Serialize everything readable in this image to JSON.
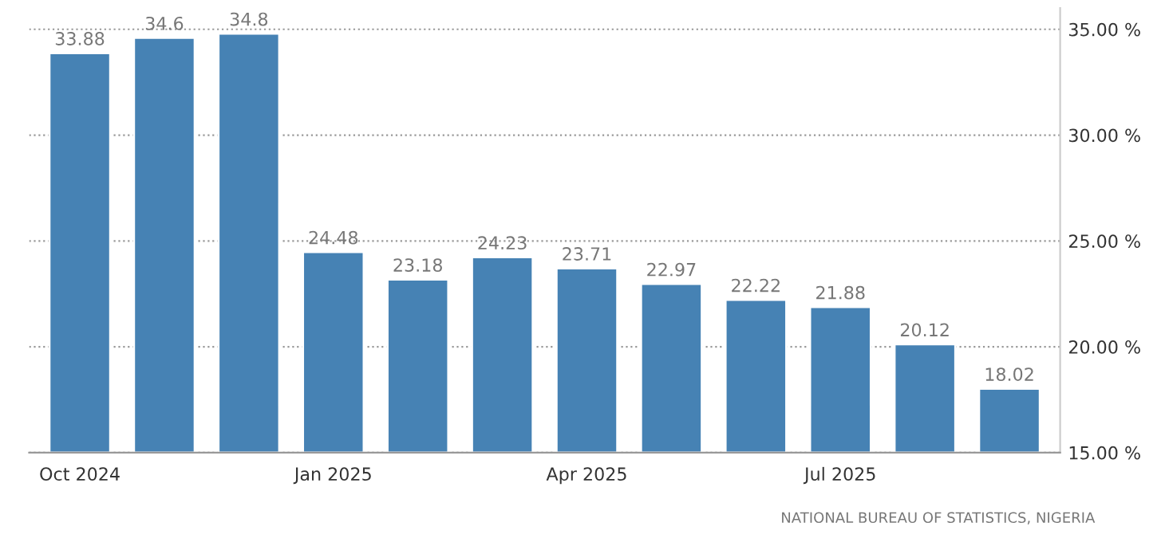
{
  "chart_data": {
    "type": "bar",
    "categories": [
      "Oct 2024",
      null,
      null,
      "Jan 2025",
      null,
      null,
      "Apr 2025",
      null,
      null,
      "Jul 2025",
      null,
      null
    ],
    "values": [
      33.88,
      34.6,
      34.8,
      24.48,
      23.18,
      24.23,
      23.71,
      22.97,
      22.22,
      21.88,
      20.12,
      18.02
    ],
    "color": "#4682b4",
    "ylim": [
      15,
      36
    ],
    "yticks": [
      {
        "value": 15,
        "label": "15.00 %"
      },
      {
        "value": 20,
        "label": "20.00 %"
      },
      {
        "value": 25,
        "label": "25.00 %"
      },
      {
        "value": 30,
        "label": "30.00 %"
      },
      {
        "value": 35,
        "label": "35.00 %"
      }
    ],
    "grid": "y",
    "data_labels": true,
    "annotations": [
      "NATIONAL BUREAU OF STATISTICS, NIGERIA"
    ]
  }
}
